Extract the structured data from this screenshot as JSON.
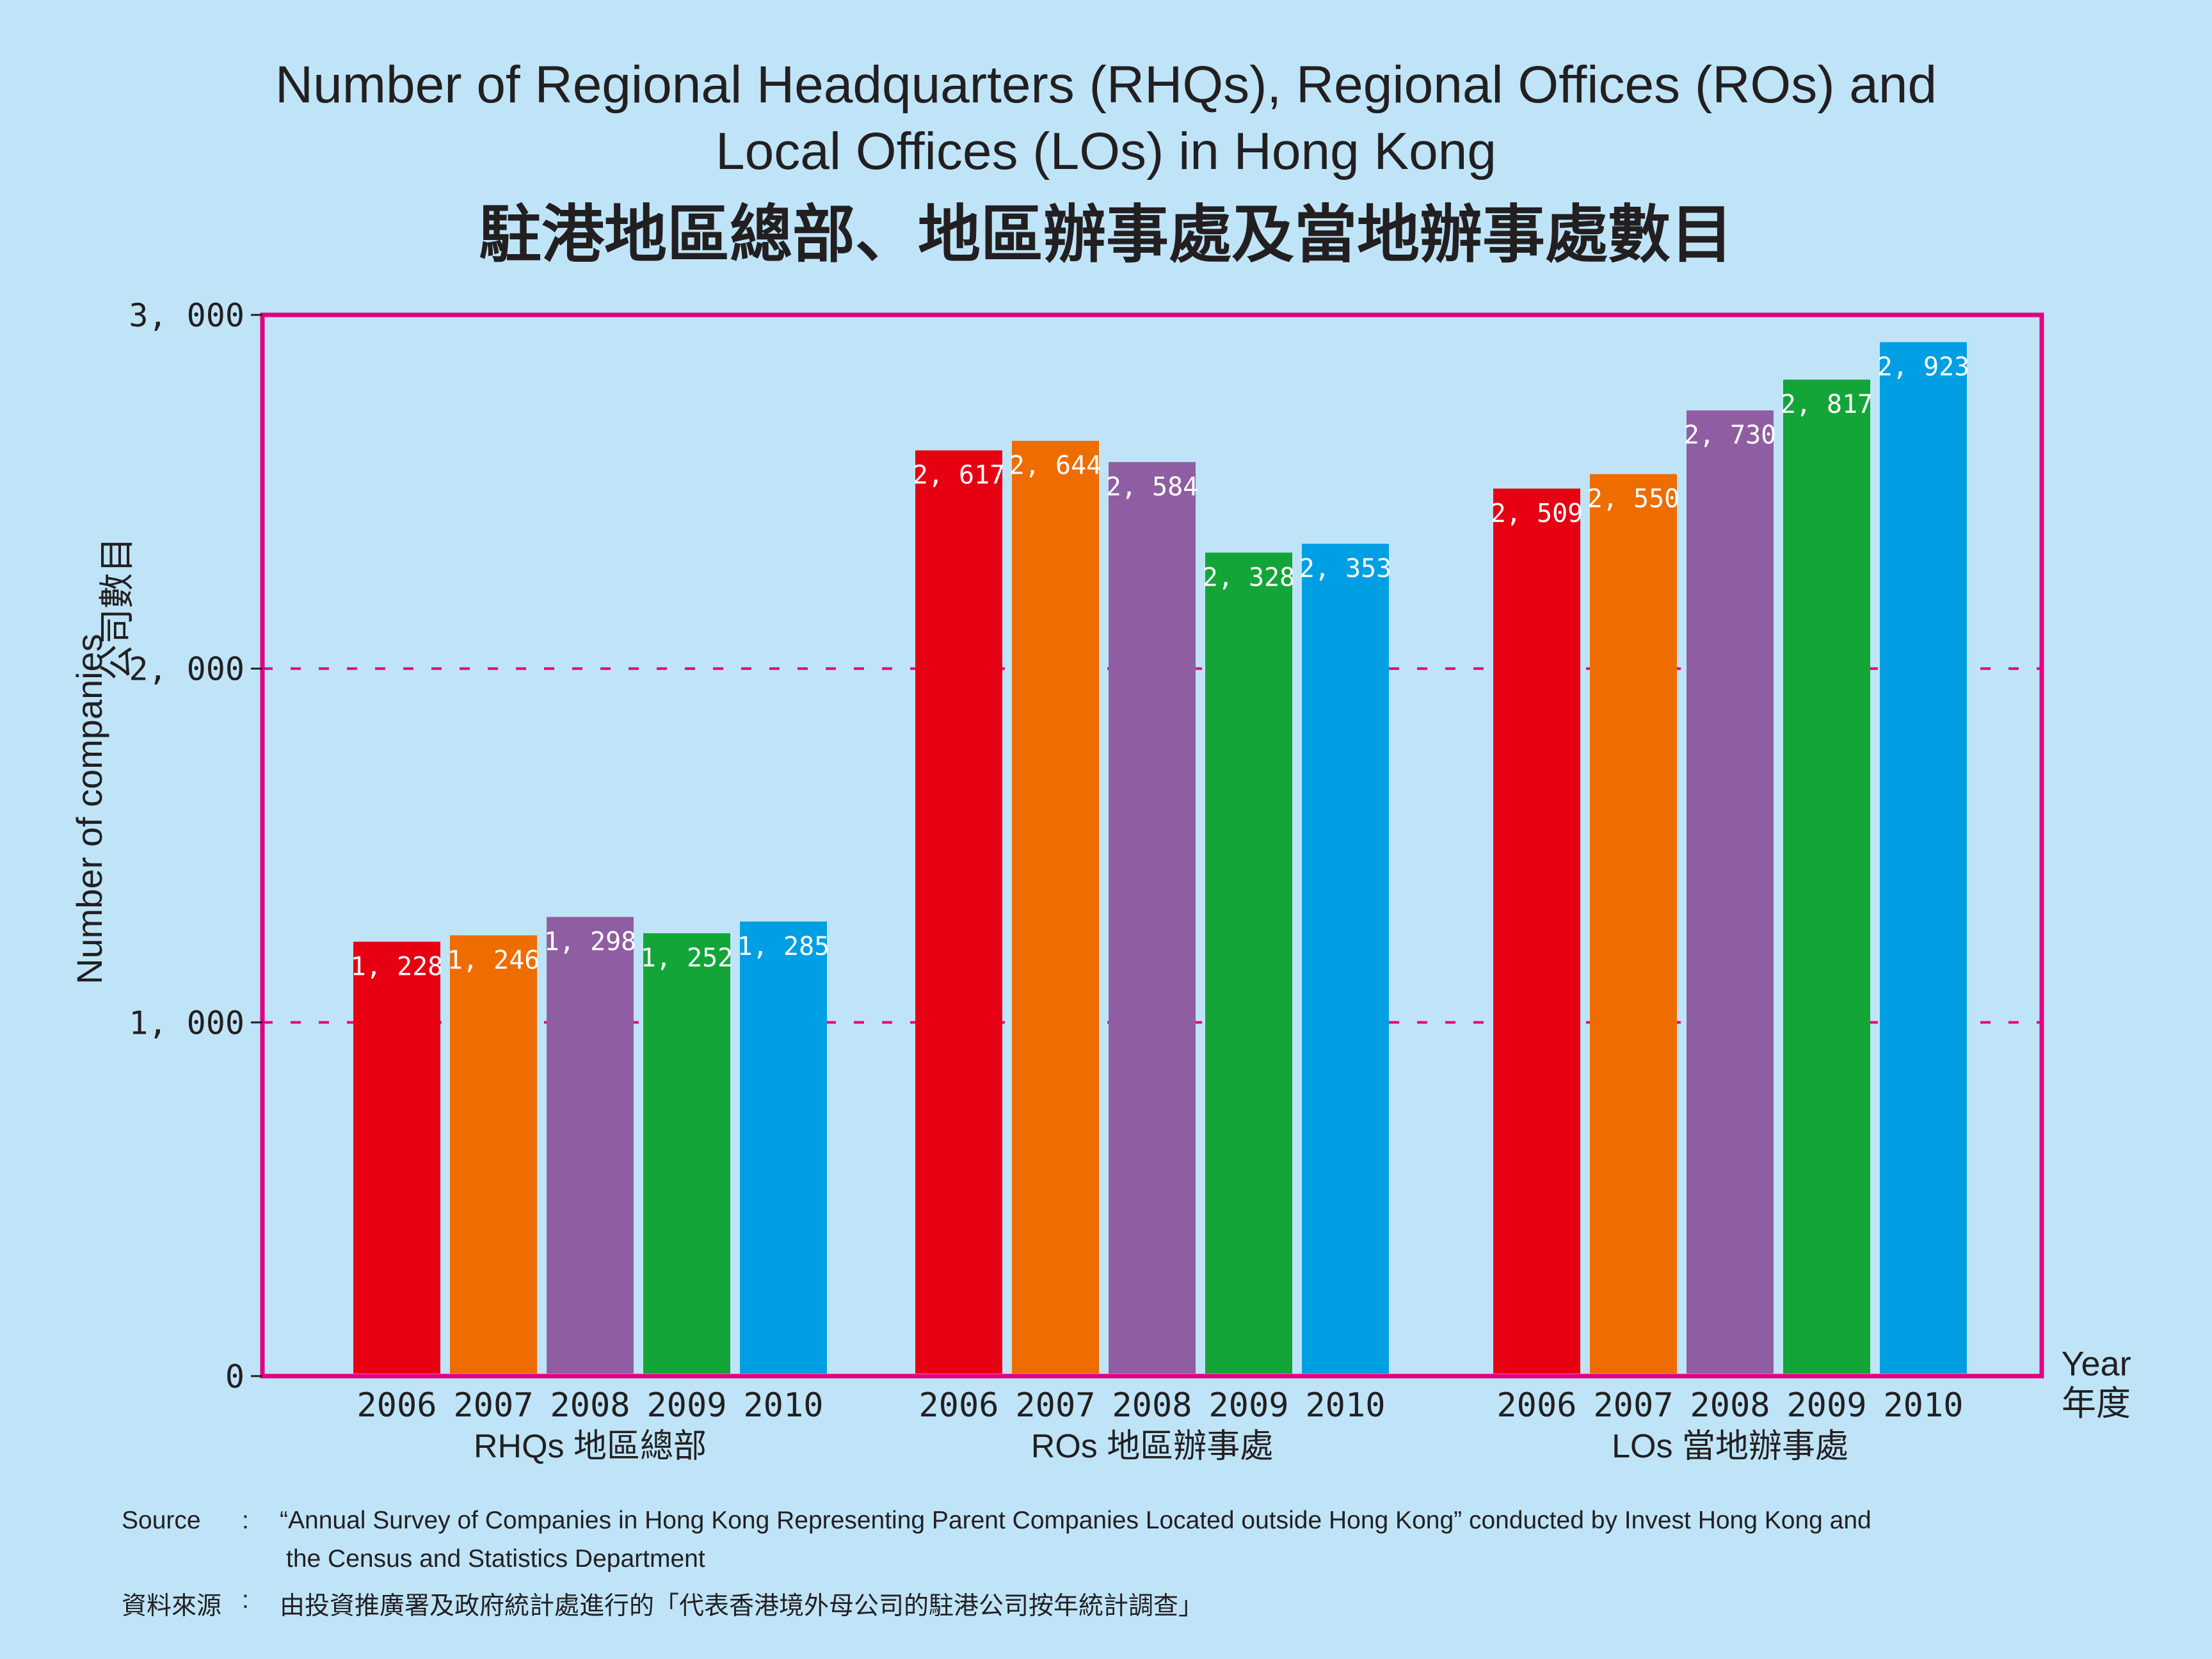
{
  "title_en_line1": "Number of Regional Headquarters (RHQs), Regional Offices (ROs) and",
  "title_en_line2": "Local Offices (LOs) in Hong Kong",
  "title_zh": "駐港地區總部、地區辦事處及當地辦事處數目",
  "ylabel_en": "Number of companies",
  "ylabel_zh": "公司數目",
  "year_label_en": "Year",
  "year_label_zh": "年度",
  "source": {
    "label_en": "Source",
    "colon": ":",
    "text_en_line1": "“Annual Survey of Companies in Hong Kong Representing Parent Companies Located outside Hong Kong” conducted by Invest Hong Kong and",
    "text_en_line2": "the Census and Statistics Department",
    "label_zh": "資料來源",
    "text_zh": "由投資推廣署及政府統計處進行的「代表香港境外母公司的駐港公司按年統計調查」"
  },
  "colors": {
    "background": "#bfe4f8",
    "frame": "#e3007f",
    "gridline": "#e3007f",
    "2006": "#e60012",
    "2007": "#ee6c00",
    "2008": "#8f5ea2",
    "2009": "#13a538",
    "2010": "#009fe3"
  },
  "chart_data": {
    "type": "bar",
    "title": "Number of Regional Headquarters (RHQs), Regional Offices (ROs) and Local Offices (LOs) in Hong Kong",
    "ylabel": "Number of companies",
    "xlabel": "Year",
    "ylim": [
      0,
      3000
    ],
    "yticks": [
      0,
      1000,
      2000,
      3000
    ],
    "ytick_labels": [
      "0",
      "1, 000",
      "2, 000",
      "3, 000"
    ],
    "grid": "dashed horizontal at 1000 and 2000",
    "years": [
      "2006",
      "2007",
      "2008",
      "2009",
      "2010"
    ],
    "groups": [
      {
        "label_en": "RHQs",
        "label_zh": "地區總部",
        "values": [
          1228,
          1246,
          1298,
          1252,
          1285
        ],
        "value_labels": [
          "1, 228",
          "1, 246",
          "1, 298",
          "1, 252",
          "1, 285"
        ]
      },
      {
        "label_en": "ROs",
        "label_zh": "地區辦事處",
        "values": [
          2617,
          2644,
          2584,
          2328,
          2353
        ],
        "value_labels": [
          "2, 617",
          "2, 644",
          "2, 584",
          "2, 328",
          "2, 353"
        ]
      },
      {
        "label_en": "LOs",
        "label_zh": "當地辦事處",
        "values": [
          2509,
          2550,
          2730,
          2817,
          2923
        ],
        "value_labels": [
          "2, 509",
          "2, 550",
          "2, 730",
          "2, 817",
          "2, 923"
        ]
      }
    ]
  }
}
